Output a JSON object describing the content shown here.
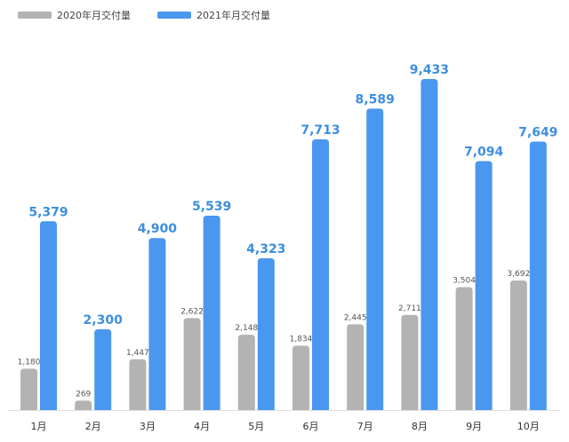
{
  "chart_data": {
    "type": "bar",
    "categories": [
      "1月",
      "2月",
      "3月",
      "4月",
      "5月",
      "6月",
      "7月",
      "8月",
      "9月",
      "10月"
    ],
    "series": [
      {
        "name": "2020年月交付量",
        "color": "#b3b3b3",
        "values": [
          1180,
          269,
          1447,
          2622,
          2148,
          1834,
          2445,
          2711,
          3504,
          3692
        ],
        "labels": [
          "1,180",
          "269",
          "1,447",
          "2,622",
          "2,148",
          "1,834",
          "2,445",
          "2,711",
          "3,504",
          "3,692"
        ]
      },
      {
        "name": "2021年月交付量",
        "color": "#4a97f0",
        "values": [
          5379,
          2300,
          4900,
          5539,
          4323,
          7713,
          8589,
          9433,
          7094,
          7649
        ],
        "labels": [
          "5,379",
          "2,300",
          "4,900",
          "5,539",
          "4,323",
          "7,713",
          "8,589",
          "9,433",
          "7,094",
          "7,649"
        ]
      }
    ],
    "title": "",
    "xlabel": "",
    "ylabel": "",
    "ylim": [
      0,
      9433
    ],
    "grid": false,
    "legend_position": "top-left"
  },
  "label_color_new": "#3d8ee0",
  "axis_color": "#dddddd"
}
